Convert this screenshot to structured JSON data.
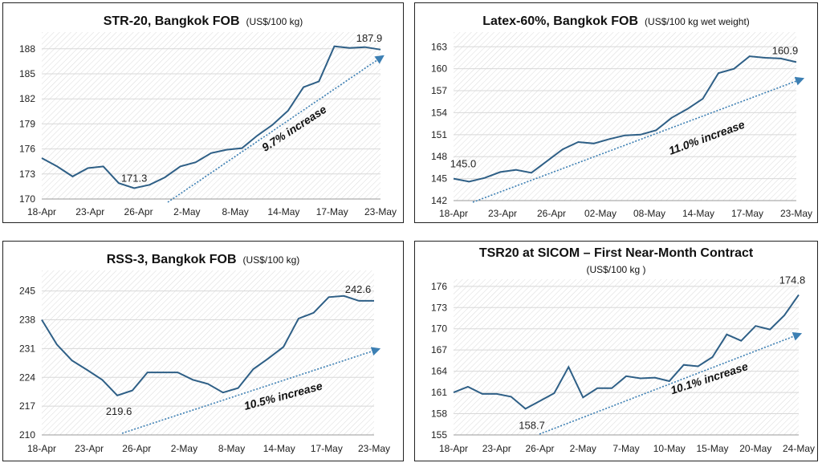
{
  "charts": {
    "c1": {
      "title": "STR-20, Bangkok FOB",
      "unit": "(US$/100 kg)"
    },
    "c2": {
      "title": "Latex-60%, Bangkok FOB",
      "unit": "(US$/100 kg wet weight)"
    },
    "c3": {
      "title": "RSS-3, Bangkok FOB",
      "unit": "(US$/100 kg)"
    },
    "c4": {
      "title": "TSR20 at SICOM – First Near-Month Contract",
      "unit": "(US$/100 kg )"
    }
  },
  "chart_data": [
    {
      "type": "line",
      "title": "STR-20, Bangkok FOB",
      "subtitle": "(US$/100 kg)",
      "x_tick_labels": [
        "18-Apr",
        "23-Apr",
        "26-Apr",
        "2-May",
        "8-May",
        "14-May",
        "17-May",
        "23-May"
      ],
      "y_ticks": [
        170,
        173,
        176,
        179,
        182,
        185,
        188
      ],
      "ylim": [
        170,
        190
      ],
      "series": [
        {
          "values": [
            174.9,
            173.9,
            172.7,
            173.7,
            173.9,
            171.9,
            171.3,
            171.7,
            172.6,
            173.9,
            174.4,
            175.5,
            175.9,
            176.1,
            177.6,
            178.9,
            180.6,
            183.4,
            184.1,
            188.3,
            188.1,
            188.2,
            187.9
          ]
        }
      ],
      "annotations": {
        "min_label": "171.3",
        "last_label": "187.9",
        "increase_label": "9.7% increase"
      },
      "grid": true
    },
    {
      "type": "line",
      "title": "Latex-60%, Bangkok FOB",
      "subtitle": "(US$/100 kg wet weight)",
      "x_tick_labels": [
        "18-Apr",
        "23-Apr",
        "26-Apr",
        "02-May",
        "08-May",
        "14-May",
        "17-May",
        "23-May"
      ],
      "y_ticks": [
        142,
        145,
        148,
        151,
        154,
        157,
        160,
        163
      ],
      "ylim": [
        142,
        165
      ],
      "series": [
        {
          "values": [
            145.0,
            144.6,
            145.1,
            145.9,
            146.2,
            145.8,
            147.4,
            149.0,
            150.0,
            149.8,
            150.4,
            150.9,
            151.0,
            151.6,
            153.3,
            154.5,
            155.9,
            159.4,
            160.0,
            161.7,
            161.5,
            161.4,
            160.9
          ]
        }
      ],
      "annotations": {
        "first_label": "145.0",
        "last_label": "160.9",
        "increase_label": "11.0% increase"
      },
      "grid": true
    },
    {
      "type": "line",
      "title": "RSS-3, Bangkok FOB",
      "subtitle": "(US$/100 kg)",
      "x_tick_labels": [
        "18-Apr",
        "23-Apr",
        "26-Apr",
        "2-May",
        "8-May",
        "14-May",
        "17-May",
        "23-May"
      ],
      "y_ticks": [
        210,
        217,
        224,
        231,
        238,
        245
      ],
      "ylim": [
        210,
        250
      ],
      "series": [
        {
          "values": [
            238.0,
            232.0,
            228.1,
            225.8,
            223.4,
            219.6,
            220.8,
            225.2,
            225.2,
            225.2,
            223.4,
            222.4,
            220.3,
            221.4,
            226.0,
            228.6,
            231.4,
            238.3,
            239.7,
            243.5,
            243.8,
            242.6,
            242.6
          ]
        }
      ],
      "annotations": {
        "min_label": "219.6",
        "last_label": "242.6",
        "increase_label": "10.5% increase"
      },
      "grid": true
    },
    {
      "type": "line",
      "title": "TSR20 at SICOM – First Near-Month Contract",
      "subtitle": "(US$/100 kg )",
      "x_tick_labels": [
        "18-Apr",
        "23-Apr",
        "26-Apr",
        "2-May",
        "7-May",
        "10-May",
        "15-May",
        "20-May",
        "24-May"
      ],
      "y_ticks": [
        155,
        158,
        161,
        164,
        167,
        170,
        173,
        176
      ],
      "ylim": [
        155,
        177
      ],
      "series": [
        {
          "values": [
            161.0,
            161.8,
            160.8,
            160.8,
            160.4,
            158.7,
            159.8,
            160.9,
            164.6,
            160.3,
            161.6,
            161.6,
            163.3,
            163.0,
            163.1,
            162.6,
            164.9,
            164.7,
            166.0,
            169.2,
            168.3,
            170.4,
            169.9,
            171.9,
            174.8
          ]
        }
      ],
      "annotations": {
        "min_label": "158.7",
        "last_label": "174.8",
        "increase_label": "10.1% increase"
      },
      "grid": true
    }
  ],
  "colors": {
    "line": "#2e5f86",
    "trend": "#3c7fb3",
    "grid": "#d8d8d8",
    "fill_stripe": "#dadada"
  }
}
